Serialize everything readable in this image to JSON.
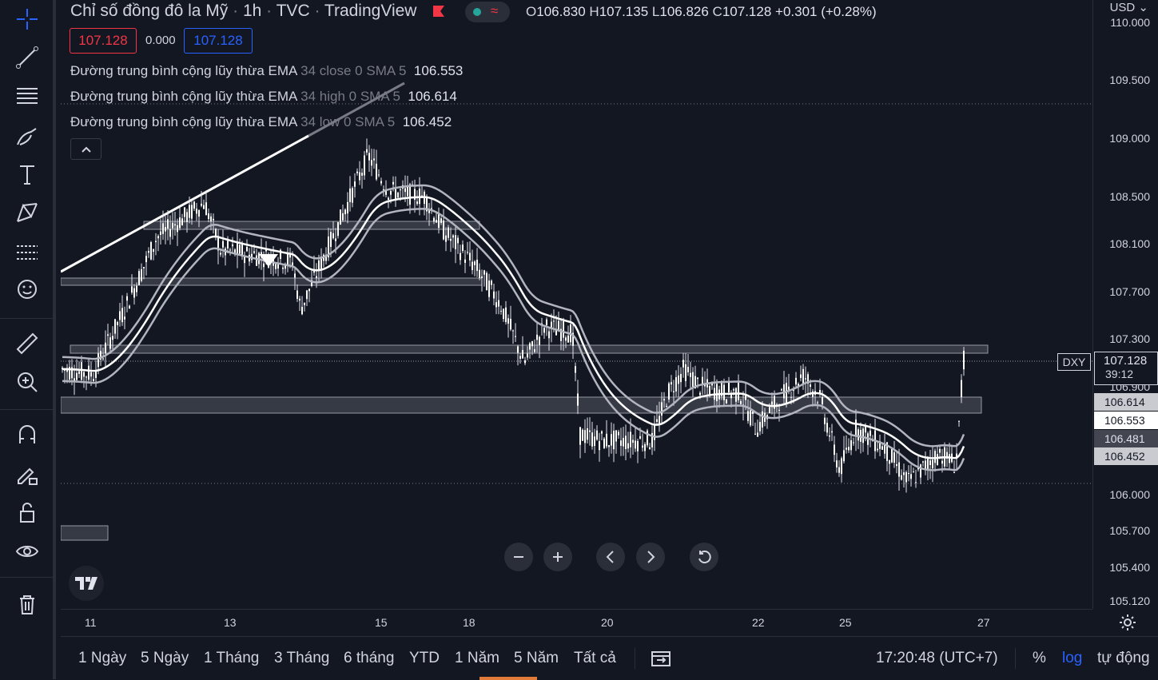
{
  "header": {
    "title": "Chỉ số đồng đô la Mỹ",
    "interval": "1h",
    "exchange": "TVC",
    "source": "TradingView",
    "ohlc": {
      "o_label": "O",
      "o": "106.830",
      "h_label": "H",
      "h": "107.135",
      "l_label": "L",
      "l": "106.826",
      "c_label": "C",
      "c": "107.128",
      "change": "+0.301 (+0.28%)"
    },
    "sell_price": "107.128",
    "spread": "0.000",
    "buy_price": "107.128",
    "currency": "USD"
  },
  "legend": [
    {
      "name": "Đường trung bình cộng lũy thừa EMA",
      "params": "34 close 0 SMA 5",
      "value": "106.553"
    },
    {
      "name": "Đường trung bình cộng lũy thừa EMA",
      "params": "34 high 0 SMA 5",
      "value": "106.614"
    },
    {
      "name": "Đường trung bình cộng lũy thừa EMA",
      "params": "34 low 0 SMA 5",
      "value": "106.452"
    }
  ],
  "price_axis": {
    "ticks": [
      "110.000",
      "109.500",
      "109.000",
      "108.500",
      "108.100",
      "107.700",
      "107.300",
      "106.900",
      "106.000",
      "105.700",
      "105.400",
      "105.120"
    ],
    "symbol_badge": "DXY",
    "last_price": "107.128",
    "countdown": "39:12",
    "ema_high_label": "106.614",
    "ema_close_label": "106.553",
    "level_label": "106.481",
    "ema_low_label": "106.452"
  },
  "time_axis": {
    "ticks": [
      "11",
      "13",
      "15",
      "18",
      "20",
      "22",
      "25",
      "27"
    ]
  },
  "bottom_bar": {
    "ranges": [
      "1 Ngày",
      "5 Ngày",
      "1 Tháng",
      "3 Tháng",
      "6 tháng",
      "YTD",
      "1 Năm",
      "5 Năm",
      "Tất cả"
    ],
    "clock": "17:20:48 (UTC+7)",
    "percent": "%",
    "log": "log",
    "auto": "tự động"
  },
  "colors": {
    "background": "#131722",
    "accent": "#2962ff",
    "sell": "#f23645",
    "buy": "#2962ff",
    "up": "#26a69a"
  }
}
